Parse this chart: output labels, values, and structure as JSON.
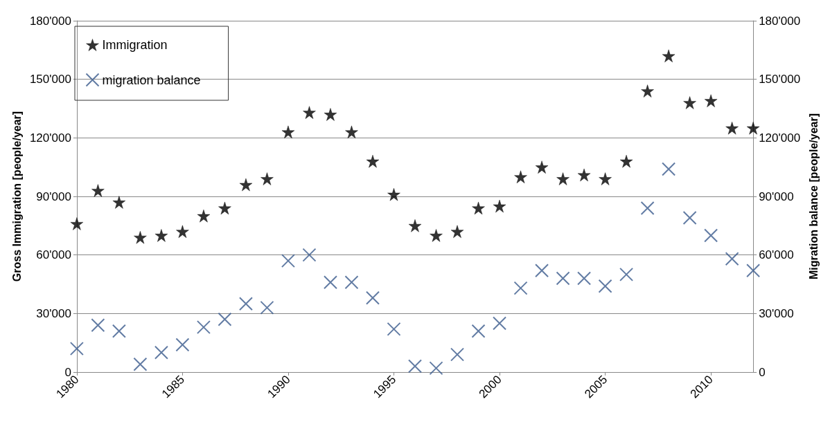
{
  "chart_data": {
    "type": "scatter",
    "ylabel": "Gross Immigration [people/year]",
    "y2label": "Migration balance [people/year]",
    "x": [
      1980,
      1981,
      1982,
      1983,
      1984,
      1985,
      1986,
      1987,
      1988,
      1989,
      1990,
      1991,
      1992,
      1993,
      1994,
      1995,
      1996,
      1997,
      1998,
      1999,
      2000,
      2001,
      2002,
      2003,
      2004,
      2005,
      2006,
      2007,
      2008,
      2009,
      2010,
      2011,
      2012
    ],
    "series": [
      {
        "name": "Immigration",
        "color": "#000000",
        "marker": "star",
        "values": [
          76000,
          93000,
          87000,
          69000,
          70000,
          72000,
          80000,
          84000,
          96000,
          99000,
          123000,
          133000,
          132000,
          123000,
          108000,
          91000,
          75000,
          70000,
          72000,
          84000,
          85000,
          100000,
          105000,
          99000,
          101000,
          99000,
          108000,
          144000,
          162000,
          138000,
          139000,
          125000,
          125000
        ]
      },
      {
        "name": "migration balance",
        "color": "#3a5a8c",
        "marker": "cross",
        "axis": "y2",
        "values": [
          12000,
          24000,
          21000,
          4000,
          10000,
          14000,
          23000,
          27000,
          35000,
          33000,
          57000,
          60000,
          46000,
          46000,
          38000,
          22000,
          3000,
          2000,
          9000,
          21000,
          25000,
          43000,
          52000,
          48000,
          48000,
          44000,
          50000,
          84000,
          104000,
          79000,
          70000,
          58000,
          52000
        ]
      }
    ],
    "xlim": [
      1980,
      2012
    ],
    "xticks": [
      1980,
      1985,
      1990,
      1995,
      2000,
      2005,
      2010
    ],
    "ylim": [
      0,
      180000
    ],
    "yticks": [
      0,
      {
        "value": 30000,
        "label": "30'000"
      },
      {
        "value": 60000,
        "label": "60'000"
      },
      {
        "value": 90000,
        "label": "90'000"
      },
      {
        "value": 120000,
        "label": "120'000"
      },
      {
        "value": 150000,
        "label": "150'000"
      },
      {
        "value": 180000,
        "label": "180'000"
      }
    ],
    "y2lim": [
      0,
      180000
    ],
    "y2ticks": [
      0,
      {
        "value": 30000,
        "label": "30'000"
      },
      {
        "value": 60000,
        "label": "60'000"
      },
      {
        "value": 90000,
        "label": "90'000"
      },
      {
        "value": 120000,
        "label": "120'000"
      },
      {
        "value": 150000,
        "label": "150'000"
      },
      {
        "value": 180000,
        "label": "180'000"
      }
    ],
    "grid": "y",
    "legend": "top left"
  }
}
